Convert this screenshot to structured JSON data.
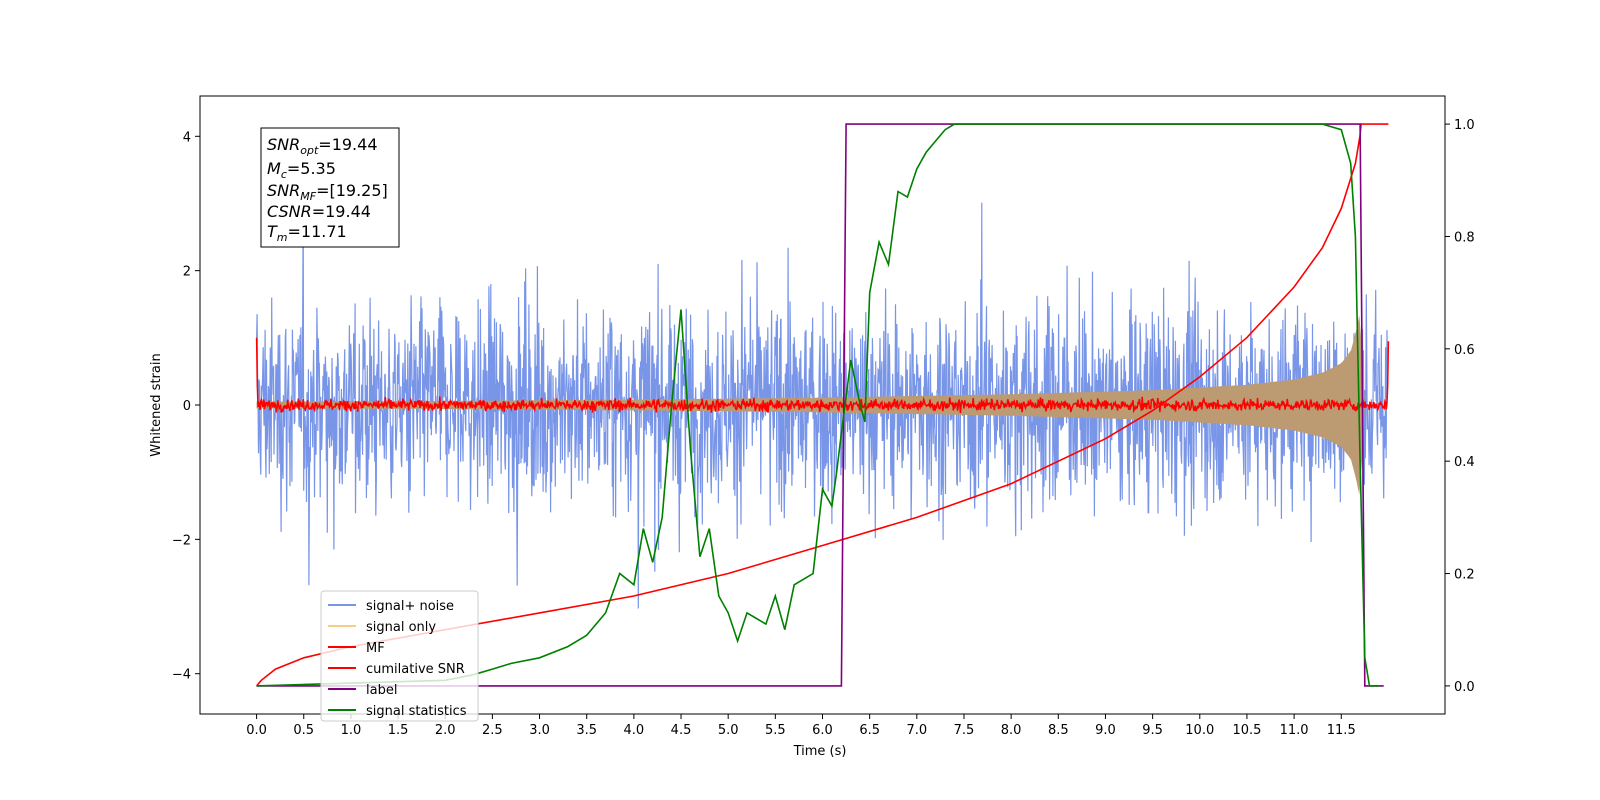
{
  "chart_data": {
    "type": "line",
    "xlabel": "Time (s)",
    "ylabel": "Whitened strain",
    "xlim": [
      -0.6,
      12.6
    ],
    "ylim": [
      -4.6,
      4.6
    ],
    "y2lim": [
      -0.05,
      1.05
    ],
    "x_ticks": [
      "0.0",
      "0.5",
      "1.0",
      "1.5",
      "2.0",
      "2.5",
      "3.0",
      "3.5",
      "4.0",
      "4.5",
      "5.0",
      "5.5",
      "6.0",
      "6.5",
      "7.0",
      "7.5",
      "8.0",
      "8.5",
      "9.0",
      "9.5",
      "10.0",
      "10.5",
      "11.0",
      "11.5"
    ],
    "y_ticks": [
      "4",
      "2",
      "0",
      "−2",
      "−4"
    ],
    "y2_ticks": [
      "1.0",
      "0.8",
      "0.6",
      "0.4",
      "0.2",
      "0.0"
    ],
    "annotation": {
      "snr_opt": {
        "base": "SNR",
        "sub": "opt",
        "value": "=19.44"
      },
      "mc": {
        "base": "M",
        "sub": "c",
        "value": "=5.35"
      },
      "snr_mf": {
        "base": "SNR",
        "sub": "MF",
        "value": "=[19.25]"
      },
      "csnr": {
        "base": "CSNR",
        "sub": "",
        "value": "=19.44"
      },
      "tm": {
        "base": "T",
        "sub": "m",
        "value": "=11.71"
      }
    },
    "legend": {
      "placement": "lower-left",
      "entries": [
        {
          "label": "signal+ noise",
          "color": "#7895e8"
        },
        {
          "label": "signal only",
          "color": "#f5cf85"
        },
        {
          "label": "MF",
          "color": "#ff0000"
        },
        {
          "label": "cumilative SNR",
          "color": "#ff0000"
        },
        {
          "label": "label",
          "color": "#800080"
        },
        {
          "label": "signal statistics",
          "color": "#008000"
        }
      ]
    },
    "series": [
      {
        "name": "signal+ noise",
        "axis": "left",
        "color": "#7895e8",
        "description_values": {
          "x_range": [
            0.0,
            11.99
          ],
          "amplitude_envelope": 2.6,
          "peak": 4.0
        }
      },
      {
        "name": "signal only",
        "axis": "left",
        "color": "#bc9a72",
        "envelope": {
          "x": [
            0.0,
            2.0,
            4.0,
            6.0,
            8.0,
            9.5,
            10.5,
            11.0,
            11.3,
            11.5,
            11.6,
            11.65,
            11.7,
            11.75
          ],
          "amp": [
            0.05,
            0.06,
            0.08,
            0.11,
            0.16,
            0.22,
            0.3,
            0.38,
            0.48,
            0.62,
            0.8,
            1.05,
            1.4,
            0.0
          ]
        }
      },
      {
        "name": "MF",
        "axis": "left",
        "color": "#ff0000",
        "level": 0.0,
        "noise": 0.06
      },
      {
        "name": "cumilative SNR",
        "axis": "right",
        "color": "#ff0000",
        "x": [
          0.0,
          0.05,
          0.2,
          0.5,
          1.0,
          2.0,
          3.0,
          4.0,
          5.0,
          6.0,
          7.0,
          8.0,
          9.0,
          9.5,
          10.0,
          10.5,
          11.0,
          11.3,
          11.5,
          11.65,
          11.7,
          11.71,
          12.0
        ],
        "y": [
          0.0,
          0.01,
          0.03,
          0.05,
          0.07,
          0.1,
          0.13,
          0.16,
          0.2,
          0.25,
          0.3,
          0.36,
          0.44,
          0.49,
          0.55,
          0.62,
          0.71,
          0.78,
          0.85,
          0.93,
          0.98,
          1.0,
          1.0
        ]
      },
      {
        "name": "label",
        "axis": "right",
        "color": "#800080",
        "x": [
          0.0,
          6.2,
          6.25,
          11.7,
          11.75,
          11.95
        ],
        "y": [
          0.0,
          0.0,
          1.0,
          1.0,
          0.0,
          0.0
        ]
      },
      {
        "name": "signal statistics",
        "axis": "right",
        "color": "#008000",
        "x": [
          0.0,
          1.0,
          2.0,
          2.3,
          2.5,
          2.7,
          3.0,
          3.3,
          3.5,
          3.7,
          3.85,
          4.0,
          4.1,
          4.2,
          4.3,
          4.4,
          4.5,
          4.6,
          4.7,
          4.8,
          4.9,
          5.0,
          5.1,
          5.2,
          5.3,
          5.4,
          5.5,
          5.6,
          5.7,
          5.8,
          5.9,
          6.0,
          6.1,
          6.15,
          6.2,
          6.3,
          6.4,
          6.45,
          6.5,
          6.6,
          6.7,
          6.8,
          6.9,
          7.0,
          7.1,
          7.2,
          7.3,
          7.4,
          7.6,
          8.0,
          8.5,
          9.0,
          9.5,
          10.0,
          10.5,
          11.0,
          11.3,
          11.5,
          11.6,
          11.65,
          11.7,
          11.75,
          11.8,
          11.9
        ],
        "y": [
          0.0,
          0.005,
          0.01,
          0.02,
          0.03,
          0.04,
          0.05,
          0.07,
          0.09,
          0.13,
          0.2,
          0.18,
          0.28,
          0.22,
          0.3,
          0.5,
          0.67,
          0.42,
          0.23,
          0.28,
          0.16,
          0.13,
          0.08,
          0.13,
          0.12,
          0.11,
          0.16,
          0.1,
          0.18,
          0.19,
          0.2,
          0.35,
          0.32,
          0.38,
          0.45,
          0.58,
          0.5,
          0.47,
          0.7,
          0.79,
          0.75,
          0.88,
          0.87,
          0.92,
          0.95,
          0.97,
          0.99,
          1.0,
          1.0,
          1.0,
          1.0,
          1.0,
          1.0,
          1.0,
          1.0,
          1.0,
          1.0,
          0.99,
          0.93,
          0.8,
          0.4,
          0.05,
          0.0,
          0.0
        ]
      }
    ]
  }
}
